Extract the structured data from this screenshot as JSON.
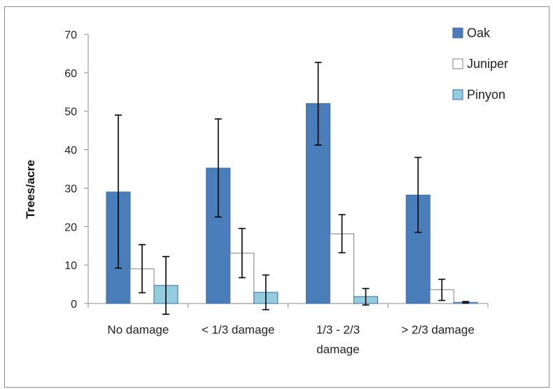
{
  "chart_data": {
    "type": "bar",
    "title": "",
    "xlabel": "",
    "ylabel": "Trees/acre",
    "ylim": [
      0,
      70
    ],
    "yticks": [
      0,
      10,
      20,
      30,
      40,
      50,
      60,
      70
    ],
    "categories": [
      [
        "No damage"
      ],
      [
        "< 1/3 damage"
      ],
      [
        "1/3 - 2/3",
        "damage"
      ],
      [
        "> 2/3 damage"
      ]
    ],
    "series": [
      {
        "name": "Oak",
        "color": "#4a7ebb",
        "values": [
          29,
          35.2,
          52,
          28.2
        ],
        "err_low": [
          9.2,
          22.5,
          41.2,
          18.5
        ],
        "err_high": [
          49,
          48,
          62.7,
          38
        ]
      },
      {
        "name": "Juniper",
        "color": "#ffffff",
        "values": [
          9,
          13.1,
          18.1,
          3.6
        ],
        "err_low": [
          2.8,
          6.7,
          13.2,
          0.8
        ],
        "err_high": [
          15.3,
          19.5,
          23.1,
          6.3
        ]
      },
      {
        "name": "Pinyon",
        "color": "#93cddd",
        "values": [
          4.7,
          2.9,
          1.8,
          0.3
        ],
        "err_low": [
          -2.8,
          -1.6,
          -0.4,
          0.1
        ],
        "err_high": [
          12.2,
          7.4,
          3.9,
          0.5
        ]
      }
    ],
    "legend_position": "top-right",
    "grid": false
  }
}
